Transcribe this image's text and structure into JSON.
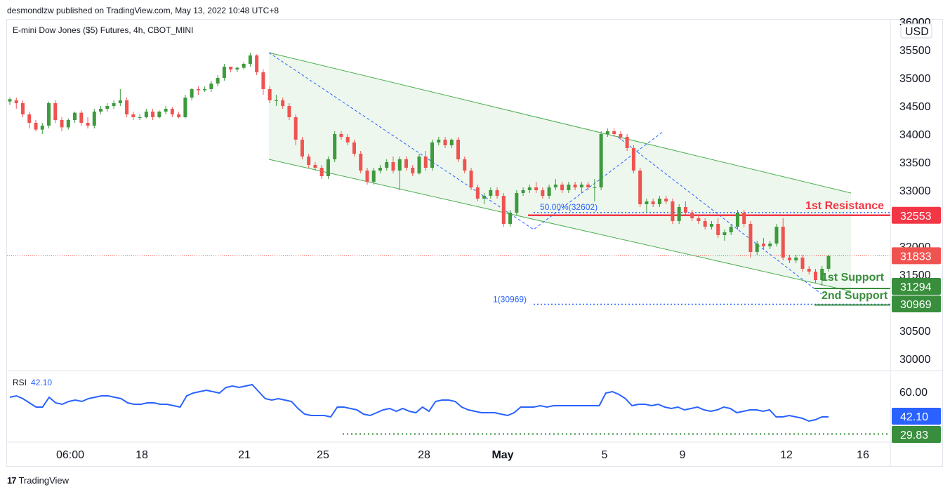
{
  "header": {
    "published": "desmondlzw published on TradingView.com, May 13, 2022 10:48 UTC+8"
  },
  "symbol": {
    "title": "E-mini Dow Jones ($5) Futures, 4h, CBOT_MINI"
  },
  "currency": "USD",
  "rsi": {
    "label": "RSI",
    "value": "42.10"
  },
  "footer": {
    "brand": "TradingView",
    "logo_mark": "17"
  },
  "colors": {
    "up": "#26a69a",
    "up_body": "#3f9b3f",
    "down": "#ef5350",
    "resistance": "#f23645",
    "support": "#388e3c",
    "channel": "#4caf50",
    "rsi_line": "#2962ff",
    "fib": "#2962ff"
  },
  "chart_data": [
    {
      "type": "candlestick",
      "title": "E-mini Dow Jones ($5) Futures, 4h, CBOT_MINI",
      "x_ticks": [
        "06:00",
        "18",
        "21",
        "25",
        "28",
        "May",
        "5",
        "9",
        "12",
        "16"
      ],
      "y_ticks": [
        36000,
        35500,
        35000,
        34500,
        34000,
        33500,
        33000,
        32500,
        32000,
        31500,
        31000,
        30500,
        30000
      ],
      "ylim": [
        29800,
        36000
      ],
      "ohlc": [
        [
          34580,
          34650,
          34520,
          34620
        ],
        [
          34600,
          34650,
          34450,
          34550
        ],
        [
          34550,
          34600,
          34300,
          34350
        ],
        [
          34350,
          34400,
          34100,
          34200
        ],
        [
          34200,
          34250,
          34050,
          34080
        ],
        [
          34080,
          34200,
          34000,
          34150
        ],
        [
          34150,
          34580,
          34100,
          34550
        ],
        [
          34550,
          34600,
          34200,
          34250
        ],
        [
          34250,
          34300,
          34050,
          34120
        ],
        [
          34120,
          34280,
          34080,
          34250
        ],
        [
          34250,
          34400,
          34200,
          34380
        ],
        [
          34380,
          34420,
          34150,
          34200
        ],
        [
          34200,
          34300,
          34100,
          34150
        ],
        [
          34150,
          34450,
          34100,
          34400
        ],
        [
          34400,
          34500,
          34350,
          34450
        ],
        [
          34450,
          34550,
          34400,
          34500
        ],
        [
          34500,
          34600,
          34450,
          34550
        ],
        [
          34550,
          34800,
          34500,
          34600
        ],
        [
          34600,
          34650,
          34300,
          34350
        ],
        [
          34350,
          34400,
          34250,
          34300
        ],
        [
          34300,
          34350,
          34250,
          34300
        ],
        [
          34300,
          34450,
          34280,
          34400
        ],
        [
          34400,
          34450,
          34250,
          34300
        ],
        [
          34300,
          34420,
          34280,
          34400
        ],
        [
          34400,
          34500,
          34350,
          34450
        ],
        [
          34450,
          34480,
          34300,
          34350
        ],
        [
          34350,
          34400,
          34280,
          34300
        ],
        [
          34300,
          34700,
          34280,
          34650
        ],
        [
          34650,
          34820,
          34600,
          34800
        ],
        [
          34800,
          34850,
          34700,
          34780
        ],
        [
          34780,
          34850,
          34750,
          34800
        ],
        [
          34800,
          34950,
          34750,
          34900
        ],
        [
          34900,
          35050,
          34850,
          35000
        ],
        [
          35000,
          35250,
          34950,
          35200
        ],
        [
          35200,
          35200,
          35100,
          35150
        ],
        [
          35150,
          35200,
          35100,
          35180
        ],
        [
          35180,
          35280,
          35150,
          35250
        ],
        [
          35250,
          35450,
          35200,
          35400
        ],
        [
          35400,
          35420,
          35050,
          35100
        ],
        [
          35100,
          35150,
          34700,
          34800
        ],
        [
          34800,
          34850,
          34550,
          34600
        ],
        [
          34600,
          34700,
          34500,
          34600
        ],
        [
          34600,
          34650,
          34450,
          34500
        ],
        [
          34500,
          34550,
          34250,
          34300
        ],
        [
          34300,
          34350,
          33800,
          33900
        ],
        [
          33900,
          33950,
          33550,
          33600
        ],
        [
          33600,
          33650,
          33400,
          33450
        ],
        [
          33450,
          33500,
          33350,
          33400
        ],
        [
          33400,
          33450,
          33200,
          33250
        ],
        [
          33250,
          33600,
          33200,
          33550
        ],
        [
          33550,
          34050,
          33500,
          34000
        ],
        [
          34000,
          34050,
          33900,
          33950
        ],
        [
          33950,
          34000,
          33800,
          33850
        ],
        [
          33850,
          33900,
          33600,
          33650
        ],
        [
          33650,
          33700,
          33300,
          33350
        ],
        [
          33350,
          33400,
          33100,
          33150
        ],
        [
          33150,
          33400,
          33100,
          33350
        ],
        [
          33350,
          33450,
          33300,
          33400
        ],
        [
          33400,
          33550,
          33350,
          33500
        ],
        [
          33500,
          33600,
          33300,
          33350
        ],
        [
          33350,
          33600,
          33000,
          33550
        ],
        [
          33550,
          33600,
          33350,
          33400
        ],
        [
          33400,
          33450,
          33250,
          33300
        ],
        [
          33300,
          33650,
          33280,
          33600
        ],
        [
          33600,
          33700,
          33350,
          33400
        ],
        [
          33400,
          33900,
          33350,
          33850
        ],
        [
          33850,
          33950,
          33800,
          33900
        ],
        [
          33900,
          33950,
          33750,
          33800
        ],
        [
          33800,
          33920,
          33750,
          33900
        ],
        [
          33900,
          33950,
          33500,
          33550
        ],
        [
          33550,
          33600,
          33300,
          33350
        ],
        [
          33350,
          33400,
          33000,
          33050
        ],
        [
          33050,
          33100,
          32800,
          32850
        ],
        [
          32850,
          32950,
          32750,
          32900
        ],
        [
          32900,
          33050,
          32850,
          33000
        ],
        [
          33000,
          33050,
          32850,
          32900
        ],
        [
          32900,
          32950,
          32350,
          32400
        ],
        [
          32400,
          32650,
          32350,
          32600
        ],
        [
          32600,
          33000,
          32550,
          32950
        ],
        [
          32950,
          33050,
          32900,
          33000
        ],
        [
          33000,
          33100,
          32950,
          33050
        ],
        [
          33050,
          33150,
          32950,
          33000
        ],
        [
          33000,
          33050,
          32850,
          32900
        ],
        [
          32900,
          33100,
          32850,
          33050
        ],
        [
          33050,
          33200,
          33000,
          33100
        ],
        [
          33100,
          33150,
          32950,
          33000
        ],
        [
          33000,
          33150,
          32950,
          33100
        ],
        [
          33100,
          33150,
          33000,
          33050
        ],
        [
          33050,
          33150,
          32950,
          33100
        ],
        [
          33100,
          33150,
          33000,
          33050
        ],
        [
          33050,
          33200,
          32800,
          33050
        ],
        [
          33050,
          34050,
          33000,
          34000
        ],
        [
          34000,
          34100,
          33950,
          34050
        ],
        [
          34050,
          34100,
          33950,
          34000
        ],
        [
          34000,
          34050,
          33900,
          33950
        ],
        [
          33950,
          34000,
          33700,
          33750
        ],
        [
          33750,
          33800,
          33300,
          33350
        ],
        [
          33350,
          33400,
          32700,
          32750
        ],
        [
          32750,
          32850,
          32600,
          32800
        ],
        [
          32800,
          32850,
          32700,
          32750
        ],
        [
          32750,
          32900,
          32700,
          32850
        ],
        [
          32850,
          32900,
          32750,
          32800
        ],
        [
          32800,
          32850,
          32400,
          32450
        ],
        [
          32450,
          32750,
          32400,
          32700
        ],
        [
          32700,
          32800,
          32550,
          32600
        ],
        [
          32600,
          32650,
          32450,
          32500
        ],
        [
          32500,
          32550,
          32400,
          32450
        ],
        [
          32450,
          32500,
          32300,
          32350
        ],
        [
          32350,
          32450,
          32300,
          32400
        ],
        [
          32400,
          32500,
          32150,
          32200
        ],
        [
          32200,
          32300,
          32100,
          32250
        ],
        [
          32250,
          32400,
          32200,
          32350
        ],
        [
          32350,
          32650,
          32300,
          32600
        ],
        [
          32600,
          32650,
          32350,
          32400
        ],
        [
          32400,
          32450,
          31800,
          31900
        ],
        [
          31900,
          32100,
          31850,
          32050
        ],
        [
          32050,
          32150,
          31950,
          32000
        ],
        [
          32000,
          32100,
          31950,
          32050
        ],
        [
          32050,
          32400,
          32000,
          32350
        ],
        [
          32350,
          32500,
          31750,
          31800
        ],
        [
          31800,
          31850,
          31700,
          31750
        ],
        [
          31750,
          31850,
          31700,
          31800
        ],
        [
          31800,
          31850,
          31550,
          31600
        ],
        [
          31600,
          31650,
          31500,
          31550
        ],
        [
          31550,
          31600,
          31350,
          31400
        ],
        [
          31400,
          31650,
          31300,
          31600
        ],
        [
          31600,
          31850,
          31550,
          31830
        ]
      ],
      "channel": {
        "upper": [
          [
            35450,
            0
          ],
          [
            32950,
            1
          ]
        ],
        "lower": [
          [
            33550,
            0
          ],
          [
            31200,
            1
          ]
        ]
      },
      "annotations": [
        {
          "text": "50.00%(32602)",
          "value": 32602
        },
        {
          "text": "1(30969)",
          "value": 30969
        },
        {
          "text": "1st Resistance",
          "value": 32553
        },
        {
          "text": "1st Support",
          "value": 31294
        },
        {
          "text": "2nd Support",
          "value": 30969
        }
      ],
      "price_labels": [
        {
          "text": "32553",
          "value": 32553,
          "kind": "resistance"
        },
        {
          "text": "31833",
          "value": 31833,
          "kind": "last"
        },
        {
          "text": "31294",
          "value": 31294,
          "kind": "support"
        },
        {
          "text": "30969",
          "value": 30969,
          "kind": "support"
        }
      ],
      "last_price": 31833
    },
    {
      "type": "line",
      "name": "RSI",
      "y_ticks": [
        60.0
      ],
      "ylim": [
        24,
        74
      ],
      "values": [
        56,
        57,
        55,
        52,
        49,
        49,
        56,
        52,
        51,
        53,
        54,
        53,
        55,
        56,
        57,
        57,
        56,
        55,
        52,
        51,
        51,
        52,
        52,
        51,
        51,
        50,
        49,
        57,
        59,
        60,
        61,
        60,
        59,
        63,
        64,
        63,
        64,
        65,
        60,
        55,
        54,
        55,
        54,
        53,
        48,
        44,
        43,
        43,
        43,
        42,
        49,
        49,
        48,
        47,
        44,
        43,
        45,
        47,
        48,
        46,
        48,
        46,
        45,
        49,
        46,
        53,
        54,
        54,
        53,
        49,
        47,
        46,
        45,
        45,
        45,
        44,
        43,
        45,
        49,
        49,
        49,
        50,
        49,
        50,
        50,
        50,
        50,
        50,
        50,
        50,
        50,
        59,
        60,
        58,
        55,
        50,
        51,
        51,
        50,
        51,
        49,
        48,
        49,
        47,
        48,
        49,
        47,
        46,
        47,
        49,
        48,
        45,
        46,
        47,
        47,
        46,
        47,
        42,
        42,
        43,
        42,
        41,
        39,
        40,
        42,
        42
      ],
      "annotation_values": [
        {
          "text": "60.00",
          "value": 60
        },
        {
          "text": "42.10",
          "value": 42.1
        },
        {
          "text": "29.83",
          "value": 29.83
        }
      ]
    }
  ]
}
